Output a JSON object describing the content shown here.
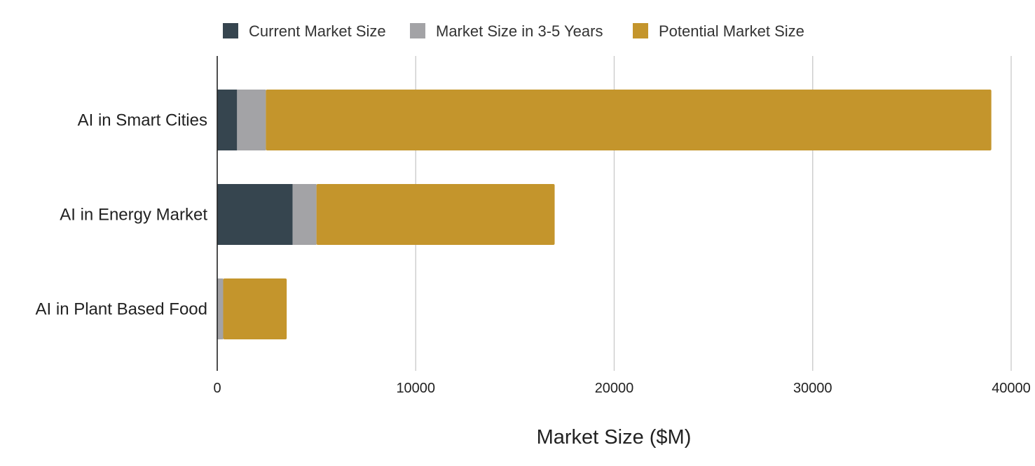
{
  "chart_data": {
    "type": "bar",
    "orientation": "horizontal",
    "stacked": true,
    "title": "",
    "xlabel": "Market Size ($M)",
    "ylabel": "",
    "xlim": [
      0,
      40000
    ],
    "x_ticks": [
      0,
      10000,
      20000,
      30000,
      40000
    ],
    "x_tick_labels": [
      "0",
      "10000",
      "20000",
      "30000",
      "40000"
    ],
    "grid": true,
    "legend_position": "top",
    "categories": [
      "AI in Smart Cities",
      "AI in Energy Market",
      "AI in Plant Based Food"
    ],
    "series": [
      {
        "name": "Current Market Size",
        "color": "#36454f",
        "values": [
          1000,
          3800,
          30
        ]
      },
      {
        "name": "Market Size in 3-5 Years",
        "color": "#a3a3a6",
        "values": [
          1450,
          1200,
          270
        ]
      },
      {
        "name": "Potential Market Size",
        "color": "#c4952c",
        "values": [
          36550,
          12000,
          3200
        ]
      }
    ]
  }
}
